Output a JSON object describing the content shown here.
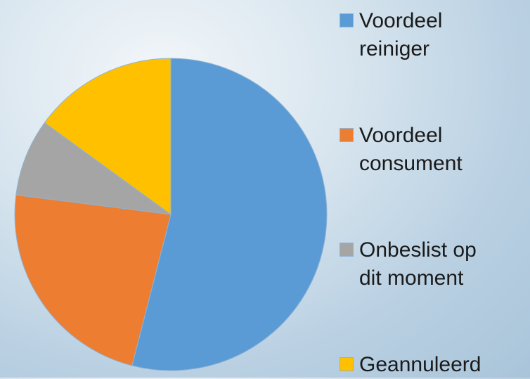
{
  "chart_data": {
    "type": "pie",
    "categories": [
      "Voordeel reiniger",
      "Voordeel consument",
      "Onbeslist op dit moment",
      "Geannuleerd"
    ],
    "values": [
      54,
      23,
      8,
      15
    ],
    "colors": [
      "#5b9bd5",
      "#ed7d31",
      "#a5a5a5",
      "#ffc000"
    ]
  }
}
